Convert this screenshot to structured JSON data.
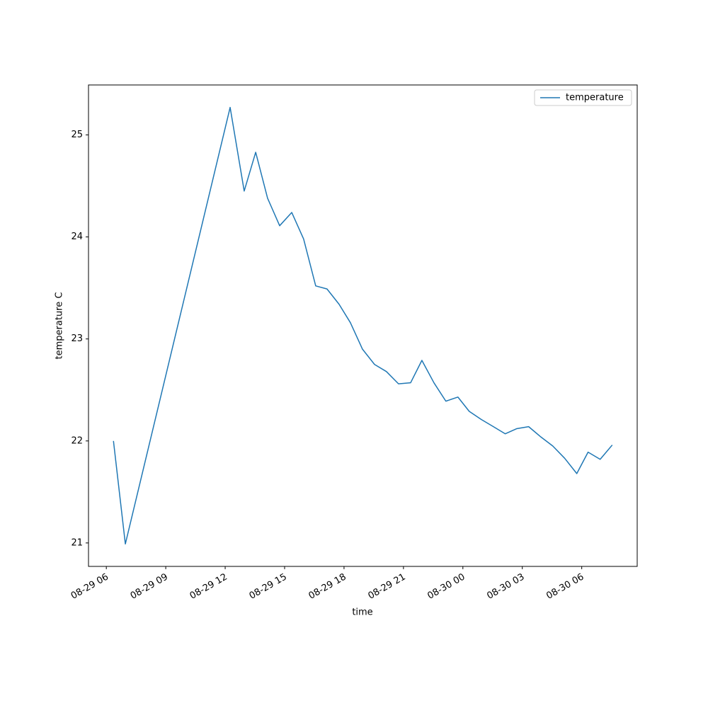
{
  "chart_data": {
    "type": "line",
    "xlabel": "time",
    "ylabel": "temperature C",
    "x": [
      6.36,
      6.96,
      12.25,
      12.96,
      13.54,
      14.14,
      14.75,
      15.36,
      15.96,
      16.57,
      17.14,
      17.75,
      18.32,
      18.93,
      19.54,
      20.14,
      20.75,
      21.36,
      21.93,
      22.54,
      23.14,
      23.75,
      24.32,
      24.93,
      25.54,
      26.14,
      26.71,
      27.32,
      27.93,
      28.54,
      29.14,
      29.75,
      30.32,
      30.93,
      31.54
    ],
    "series": [
      {
        "name": "temperature",
        "color": "#1f77b4",
        "values": [
          22.0,
          20.99,
          25.27,
          24.45,
          24.83,
          24.38,
          24.11,
          24.24,
          23.98,
          23.52,
          23.49,
          23.34,
          23.16,
          22.9,
          22.75,
          22.68,
          22.56,
          22.57,
          22.79,
          22.57,
          22.39,
          22.43,
          22.29,
          22.21,
          22.14,
          22.07,
          22.12,
          22.14,
          22.04,
          21.95,
          21.83,
          21.68,
          21.89,
          21.82,
          21.96
        ]
      }
    ],
    "xlim": [
      5.1,
      32.8
    ],
    "xticks": [
      {
        "value": 6,
        "label": "08-29 06"
      },
      {
        "value": 9,
        "label": "08-29 09"
      },
      {
        "value": 12,
        "label": "08-29 12"
      },
      {
        "value": 15,
        "label": "08-29 15"
      },
      {
        "value": 18,
        "label": "08-29 18"
      },
      {
        "value": 21,
        "label": "08-29 21"
      },
      {
        "value": 24,
        "label": "08-30 00"
      },
      {
        "value": 27,
        "label": "08-30 03"
      },
      {
        "value": 30,
        "label": "08-30 06"
      }
    ],
    "ylim": [
      20.77,
      25.49
    ],
    "yticks": [
      21,
      22,
      23,
      24,
      25
    ],
    "legend": "upper right",
    "grid": false
  }
}
